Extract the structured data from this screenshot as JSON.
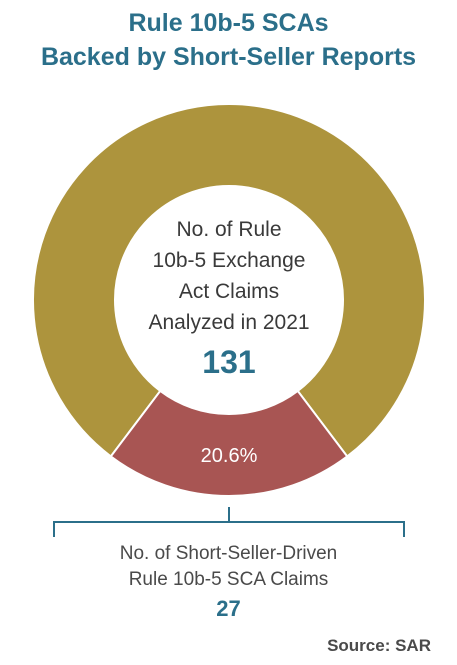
{
  "chart_data": {
    "type": "pie",
    "title_lines": [
      "Rule 10b-5 SCAs",
      "Backed by Short-Seller Reports"
    ],
    "center_label_lines": [
      "No. of Rule",
      "10b-5 Exchange",
      "Act Claims",
      "Analyzed in 2021"
    ],
    "center_value": "131",
    "slices": [
      {
        "value": 79.4,
        "color": "#ad943d"
      },
      {
        "value": 20.6,
        "label": "20.6%",
        "color": "#a85553"
      }
    ],
    "bracket_label_lines": [
      "No. of Short-Seller-Driven",
      "Rule 10b-5 SCA Claims"
    ],
    "bracket_value": "27",
    "source": "Source:  SAR"
  }
}
